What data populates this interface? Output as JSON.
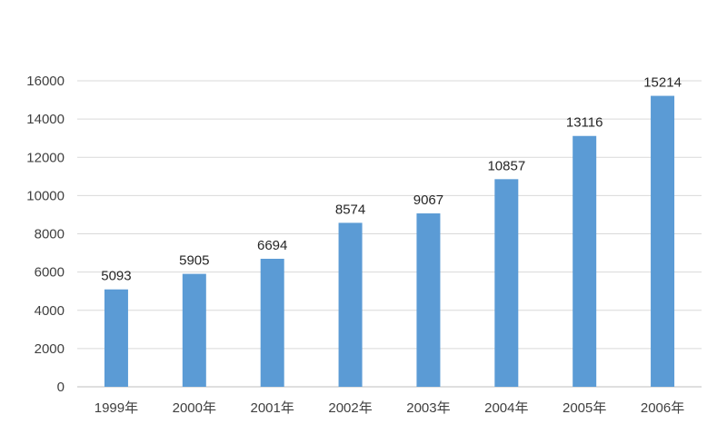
{
  "chart_data": {
    "type": "bar",
    "categories": [
      "1999年",
      "2000年",
      "2001年",
      "2002年",
      "2003年",
      "2004年",
      "2005年",
      "2006年"
    ],
    "values": [
      5093,
      5905,
      6694,
      8574,
      9067,
      10857,
      13116,
      15214
    ],
    "title": "",
    "xlabel": "",
    "ylabel": "",
    "ylim": [
      0,
      16000
    ],
    "yticks": [
      0,
      2000,
      4000,
      6000,
      8000,
      10000,
      12000,
      14000,
      16000
    ],
    "grid": true,
    "legend": "none",
    "data_labels": true,
    "bar_color": "#5b9bd5"
  }
}
